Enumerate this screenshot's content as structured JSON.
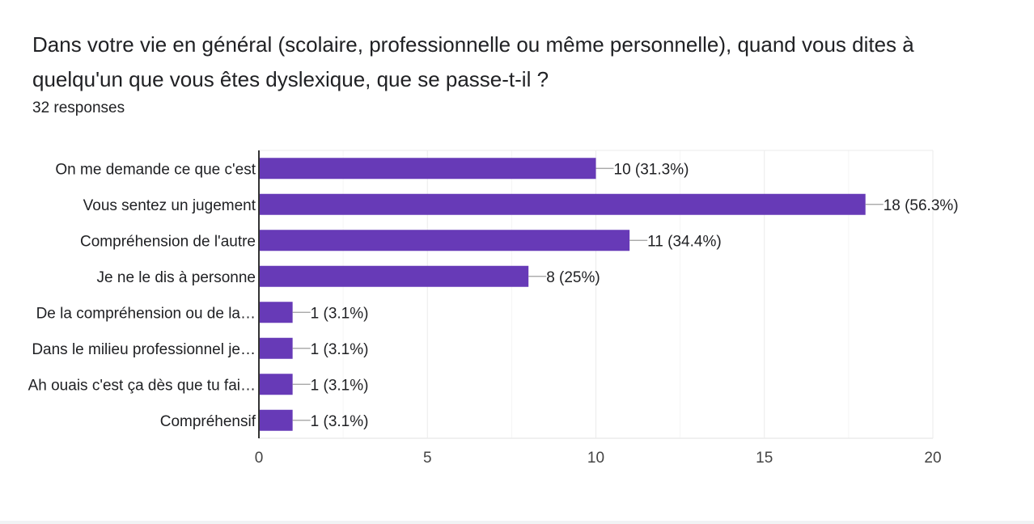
{
  "question": {
    "title": "Dans votre vie en général (scolaire, professionnelle ou même personnelle), quand vous dites à quelqu'un que vous êtes dyslexique, que se passe-t-il ?",
    "responses": "32 responses"
  },
  "colors": {
    "bar": "#673ab7",
    "grid": "#ebebeb",
    "axis": "#333333",
    "connector": "#9e9e9e"
  },
  "chart_data": {
    "type": "bar",
    "orientation": "horizontal",
    "categories": [
      "On me demande ce que c'est",
      "Vous sentez un jugement",
      "Compréhension de l'autre",
      "Je ne le dis à personne",
      "De la compréhension ou de la…",
      "Dans le milieu professionnel je…",
      "Ah ouais c'est ça dès que tu fai…",
      "Compréhensif"
    ],
    "values": [
      10,
      18,
      11,
      8,
      1,
      1,
      1,
      1
    ],
    "data_labels": [
      "10 (31.3%)",
      "18 (56.3%)",
      "11 (34.4%)",
      "8 (25%)",
      "1 (3.1%)",
      "1 (3.1%)",
      "1 (3.1%)",
      "1 (3.1%)"
    ],
    "xlim": [
      0,
      20
    ],
    "xticks": [
      0,
      5,
      10,
      15,
      20
    ],
    "grid": true,
    "legend": "none"
  }
}
